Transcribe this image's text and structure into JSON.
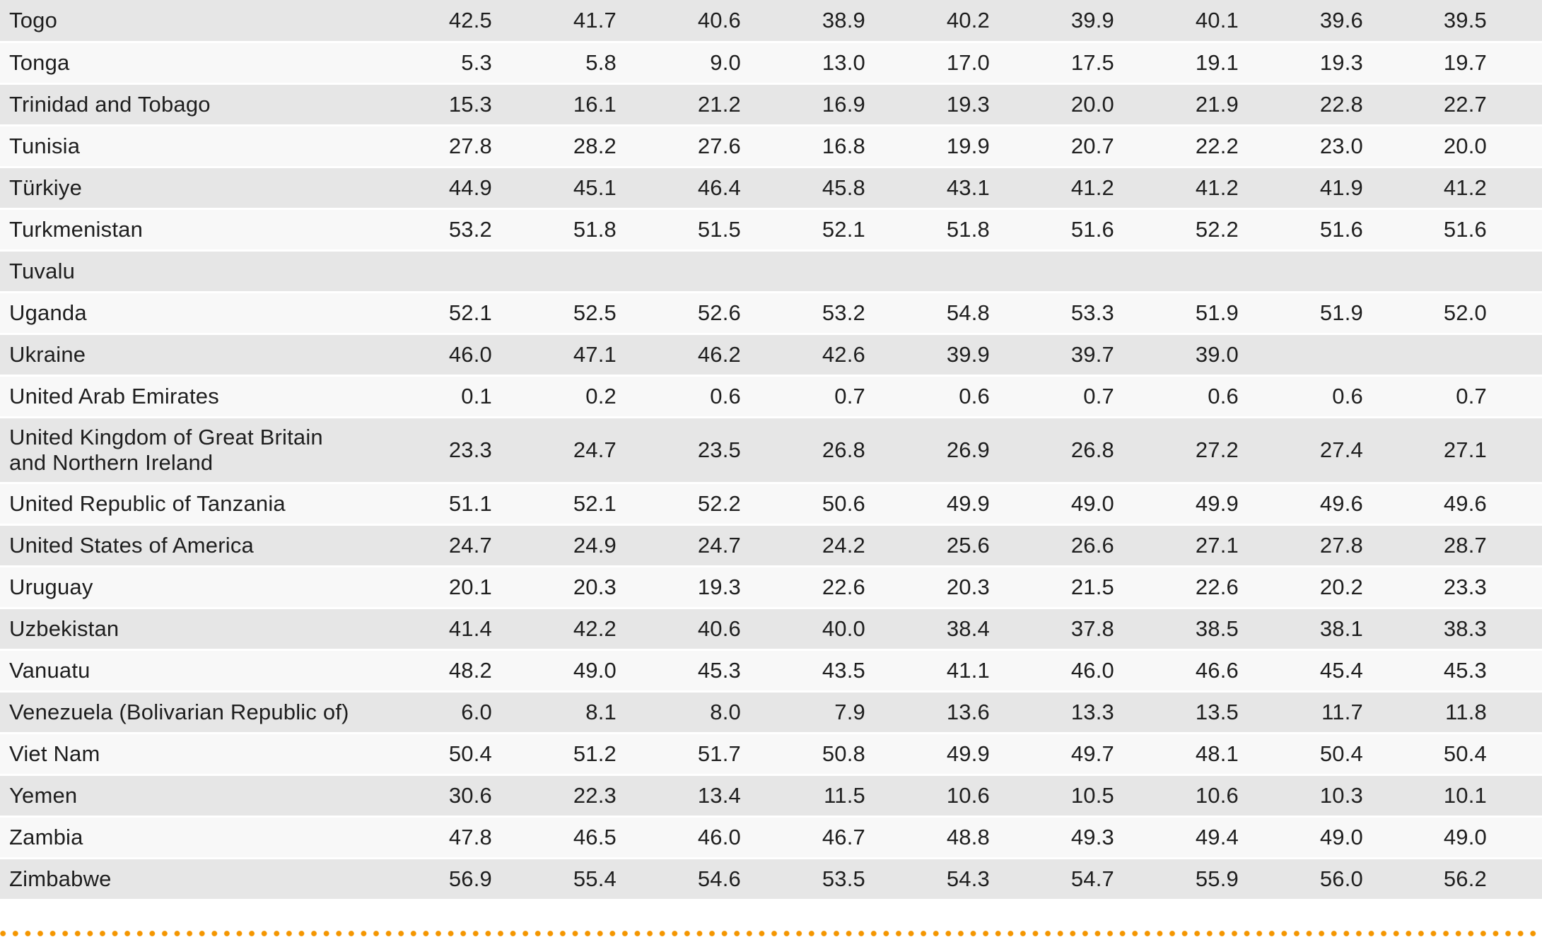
{
  "page": {
    "description": "Fragment of a statistical data table listing countries alphabetically (T to Z) with nine numeric value columns; no header row visible in the crop",
    "background_color": "#ffffff",
    "text_color": "#1e1e1e",
    "stripe_gray": "#e6e6e6",
    "stripe_light": "#f8f8f8"
  },
  "table": {
    "value_column_count": 9,
    "rows": [
      {
        "country": "Togo",
        "values": [
          "42.5",
          "41.7",
          "40.6",
          "38.9",
          "40.2",
          "39.9",
          "40.1",
          "39.6",
          "39.5"
        ]
      },
      {
        "country": "Tonga",
        "values": [
          "5.3",
          "5.8",
          "9.0",
          "13.0",
          "17.0",
          "17.5",
          "19.1",
          "19.3",
          "19.7"
        ]
      },
      {
        "country": "Trinidad and Tobago",
        "values": [
          "15.3",
          "16.1",
          "21.2",
          "16.9",
          "19.3",
          "20.0",
          "21.9",
          "22.8",
          "22.7"
        ]
      },
      {
        "country": "Tunisia",
        "values": [
          "27.8",
          "28.2",
          "27.6",
          "16.8",
          "19.9",
          "20.7",
          "22.2",
          "23.0",
          "20.0"
        ]
      },
      {
        "country": "Türkiye",
        "values": [
          "44.9",
          "45.1",
          "46.4",
          "45.8",
          "43.1",
          "41.2",
          "41.2",
          "41.9",
          "41.2"
        ]
      },
      {
        "country": "Turkmenistan",
        "values": [
          "53.2",
          "51.8",
          "51.5",
          "52.1",
          "51.8",
          "51.6",
          "52.2",
          "51.6",
          "51.6"
        ]
      },
      {
        "country": "Tuvalu",
        "values": [
          "",
          "",
          "",
          "",
          "",
          "",
          "",
          "",
          ""
        ]
      },
      {
        "country": "Uganda",
        "values": [
          "52.1",
          "52.5",
          "52.6",
          "53.2",
          "54.8",
          "53.3",
          "51.9",
          "51.9",
          "52.0"
        ]
      },
      {
        "country": "Ukraine",
        "values": [
          "46.0",
          "47.1",
          "46.2",
          "42.6",
          "39.9",
          "39.7",
          "39.0",
          "",
          ""
        ]
      },
      {
        "country": "United Arab Emirates",
        "values": [
          "0.1",
          "0.2",
          "0.6",
          "0.7",
          "0.6",
          "0.7",
          "0.6",
          "0.6",
          "0.7"
        ]
      },
      {
        "country": "United Kingdom of Great Britain and Northern Ireland",
        "values": [
          "23.3",
          "24.7",
          "23.5",
          "26.8",
          "26.9",
          "26.8",
          "27.2",
          "27.4",
          "27.1"
        ]
      },
      {
        "country": "United Republic of Tanzania",
        "values": [
          "51.1",
          "52.1",
          "52.2",
          "50.6",
          "49.9",
          "49.0",
          "49.9",
          "49.6",
          "49.6"
        ]
      },
      {
        "country": "United States of America",
        "values": [
          "24.7",
          "24.9",
          "24.7",
          "24.2",
          "25.6",
          "26.6",
          "27.1",
          "27.8",
          "28.7"
        ]
      },
      {
        "country": "Uruguay",
        "values": [
          "20.1",
          "20.3",
          "19.3",
          "22.6",
          "20.3",
          "21.5",
          "22.6",
          "20.2",
          "23.3"
        ]
      },
      {
        "country": "Uzbekistan",
        "values": [
          "41.4",
          "42.2",
          "40.6",
          "40.0",
          "38.4",
          "37.8",
          "38.5",
          "38.1",
          "38.3"
        ]
      },
      {
        "country": "Vanuatu",
        "values": [
          "48.2",
          "49.0",
          "45.3",
          "43.5",
          "41.1",
          "46.0",
          "46.6",
          "45.4",
          "45.3"
        ]
      },
      {
        "country": "Venezuela (Bolivarian Republic of)",
        "values": [
          "6.0",
          "8.1",
          "8.0",
          "7.9",
          "13.6",
          "13.3",
          "13.5",
          "11.7",
          "11.8"
        ]
      },
      {
        "country": "Viet Nam",
        "values": [
          "50.4",
          "51.2",
          "51.7",
          "50.8",
          "49.9",
          "49.7",
          "48.1",
          "50.4",
          "50.4"
        ]
      },
      {
        "country": "Yemen",
        "values": [
          "30.6",
          "22.3",
          "13.4",
          "11.5",
          "10.6",
          "10.5",
          "10.6",
          "10.3",
          "10.1"
        ]
      },
      {
        "country": "Zambia",
        "values": [
          "47.8",
          "46.5",
          "46.0",
          "46.7",
          "48.8",
          "49.3",
          "49.4",
          "49.0",
          "49.0"
        ]
      },
      {
        "country": "Zimbabwe",
        "values": [
          "56.9",
          "55.4",
          "54.6",
          "53.5",
          "54.3",
          "54.7",
          "55.9",
          "56.0",
          "56.2"
        ]
      }
    ]
  },
  "separator": {
    "type": "dotted-line",
    "color": "#f49600"
  }
}
